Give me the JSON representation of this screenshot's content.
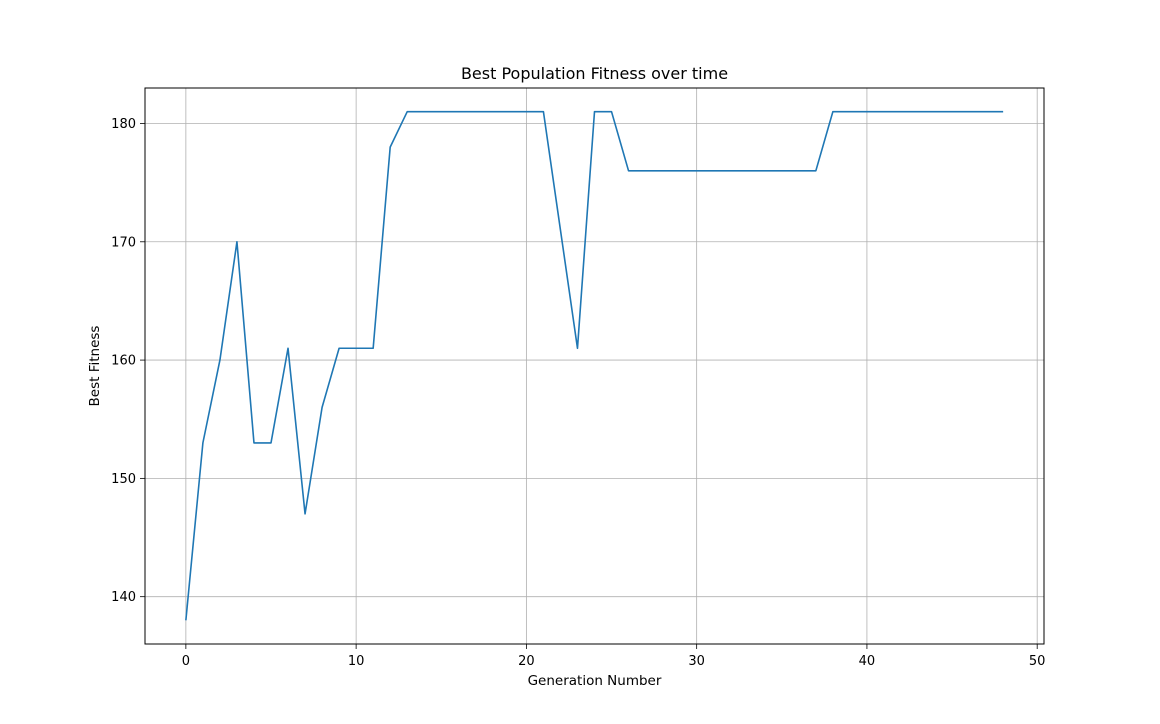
{
  "chart_data": {
    "type": "line",
    "title": "Best Population Fitness over time",
    "xlabel": "Generation Number",
    "ylabel": "Best Fitness",
    "xlim": [
      -2.4,
      50.4
    ],
    "ylim": [
      136,
      183
    ],
    "xticks": [
      0,
      10,
      20,
      30,
      40,
      50
    ],
    "yticks": [
      140,
      150,
      160,
      170,
      180
    ],
    "grid": true,
    "line_color": "#1f77b4",
    "series": [
      {
        "x": [
          0,
          1,
          2,
          3,
          4,
          5,
          6,
          7,
          8,
          9,
          10,
          11,
          12,
          13,
          14,
          15,
          16,
          17,
          18,
          19,
          20,
          21,
          22,
          23,
          24,
          25,
          26,
          27,
          28,
          29,
          30,
          31,
          32,
          33,
          34,
          35,
          36,
          37,
          38,
          39,
          40,
          41,
          42,
          43,
          44,
          45,
          46,
          47,
          48
        ],
        "values": [
          138,
          153,
          160,
          170,
          153,
          153,
          161,
          147,
          156,
          161,
          161,
          161,
          178,
          181,
          181,
          181,
          181,
          181,
          181,
          181,
          181,
          181,
          171,
          161,
          181,
          181,
          176,
          176,
          176,
          176,
          176,
          176,
          176,
          176,
          176,
          176,
          176,
          176,
          181,
          181,
          181,
          181,
          181,
          181,
          181,
          181,
          181,
          181,
          181
        ]
      }
    ]
  }
}
